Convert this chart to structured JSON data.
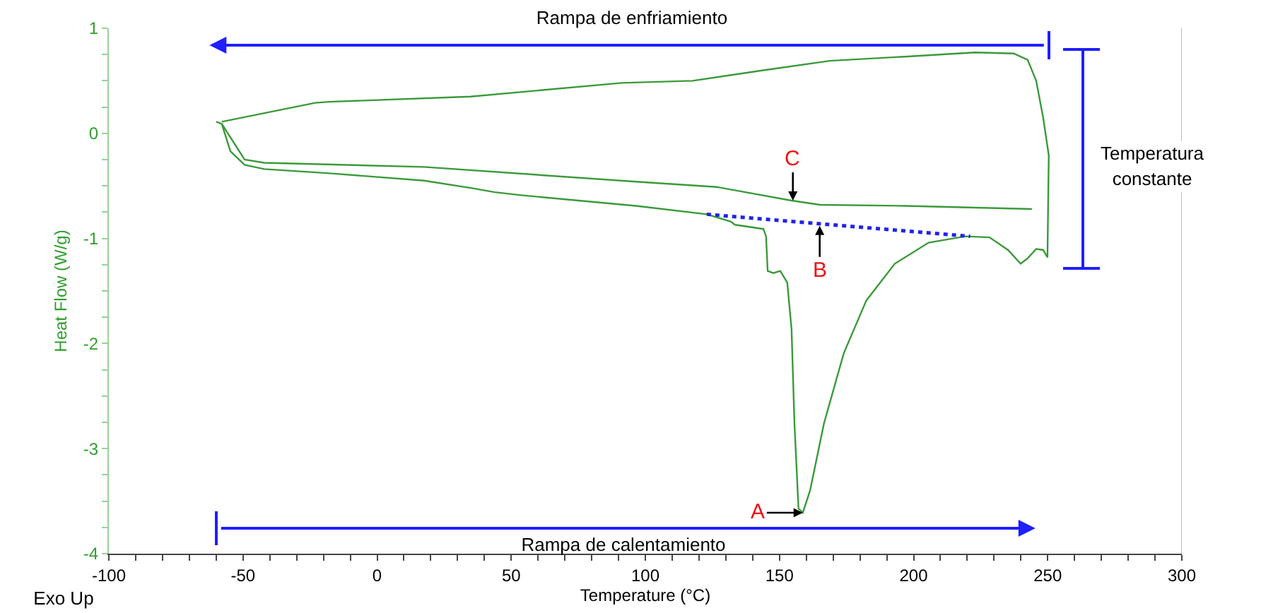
{
  "chart_data": {
    "type": "line",
    "xlabel": "Temperature (°C)",
    "ylabel": "Heat Flow (W/g)",
    "xlim": [
      -100,
      300
    ],
    "ylim": [
      -4,
      1
    ],
    "xticks": [
      -100,
      {
        "value": -90,
        "label": null
      },
      {
        "value": -80,
        "label": null
      },
      {
        "value": -70,
        "label": null
      },
      {
        "value": -60,
        "label": null
      },
      -50,
      {
        "value": -40,
        "label": null
      },
      {
        "value": -30,
        "label": null
      },
      {
        "value": -20,
        "label": null
      },
      {
        "value": -10,
        "label": null
      },
      0,
      {
        "value": 10,
        "label": null
      },
      {
        "value": 20,
        "label": null
      },
      {
        "value": 30,
        "label": null
      },
      {
        "value": 40,
        "label": null
      },
      50,
      {
        "value": 60,
        "label": null
      },
      {
        "value": 70,
        "label": null
      },
      {
        "value": 80,
        "label": null
      },
      {
        "value": 90,
        "label": null
      },
      100,
      {
        "value": 110,
        "label": null
      },
      {
        "value": 120,
        "label": null
      },
      {
        "value": 130,
        "label": null
      },
      {
        "value": 140,
        "label": null
      },
      150,
      {
        "value": 160,
        "label": null
      },
      {
        "value": 170,
        "label": null
      },
      {
        "value": 180,
        "label": null
      },
      {
        "value": 190,
        "label": null
      },
      200,
      {
        "value": 210,
        "label": null
      },
      {
        "value": 220,
        "label": null
      },
      {
        "value": 230,
        "label": null
      },
      {
        "value": 240,
        "label": null
      },
      250,
      {
        "value": 260,
        "label": null
      },
      {
        "value": 270,
        "label": null
      },
      {
        "value": 280,
        "label": null
      },
      {
        "value": 290,
        "label": null
      },
      300
    ],
    "yticks": [
      -4,
      {
        "value": -3.75,
        "label": null
      },
      {
        "value": -3.5,
        "label": null
      },
      {
        "value": -3.25,
        "label": null
      },
      -3,
      {
        "value": -2.75,
        "label": null
      },
      {
        "value": -2.5,
        "label": null
      },
      {
        "value": -2.25,
        "label": null
      },
      -2,
      {
        "value": -1.75,
        "label": null
      },
      {
        "value": -1.5,
        "label": null
      },
      {
        "value": -1.25,
        "label": null
      },
      -1,
      {
        "value": -0.75,
        "label": null
      },
      {
        "value": -0.5,
        "label": null
      },
      {
        "value": -0.25,
        "label": null
      },
      0,
      {
        "value": 0.25,
        "label": null
      },
      {
        "value": 0.5,
        "label": null
      },
      {
        "value": 0.75,
        "label": null
      },
      1
    ],
    "series": [
      {
        "color": "#3a9a3a",
        "x": [
          -60.0,
          -57.9,
          -54.7,
          -49.4,
          -42.1,
          -17.8,
          17.5,
          34.9,
          43.8,
          54.3,
          96.5,
          122.9,
          131.9,
          133.4,
          144.0,
          145.0,
          145.6,
          147.7,
          150.3,
          152.9,
          154.5,
          155.6,
          157.1,
          158.7,
          161.4,
          166.6,
          174.0,
          182.4,
          193.0,
          205.6,
          219.3,
          228.3,
          235.2,
          239.9,
          242.5,
          245.7,
          248.3,
          249.9,
          250.4,
          248.3,
          245.7,
          242.5,
          237.3,
          223.0,
          196.7,
          168.8,
          144.0,
          117.6,
          91.3,
          34.9,
          -17.8,
          -23.1,
          -57.9
        ],
        "values": [
          0.11,
          0.09,
          -0.17,
          -0.3,
          -0.34,
          -0.38,
          -0.45,
          -0.52,
          -0.56,
          -0.59,
          -0.69,
          -0.77,
          -0.84,
          -0.87,
          -0.91,
          -0.98,
          -1.31,
          -1.33,
          -1.31,
          -1.42,
          -1.86,
          -2.77,
          -3.57,
          -3.61,
          -3.4,
          -2.76,
          -2.09,
          -1.59,
          -1.24,
          -1.04,
          -0.98,
          -0.99,
          -1.11,
          -1.24,
          -1.19,
          -1.1,
          -1.11,
          -1.18,
          -0.21,
          0.15,
          0.5,
          0.7,
          0.76,
          0.77,
          0.73,
          0.69,
          0.6,
          0.5,
          0.48,
          0.35,
          0.3,
          0.29,
          0.11
        ]
      },
      {
        "color": "#3a9a3a",
        "x": [
          -57.9,
          -49.4,
          -42.1,
          17.5,
          96.5,
          126.5,
          154.5,
          165.1,
          196.7,
          244.1
        ],
        "values": [
          0.09,
          -0.25,
          -0.28,
          -0.32,
          -0.46,
          -0.51,
          -0.64,
          -0.68,
          -0.69,
          -0.72
        ]
      },
      {
        "color": "#2222ee",
        "line_style": "dotted",
        "x": [
          122.9,
          221.1
        ],
        "values": [
          -0.77,
          -0.98
        ]
      }
    ],
    "annotations": [
      "Rampa de enfriamiento",
      "Rampa de calentamiento",
      "Temperatura constante",
      "Exo Up",
      {
        "text": "A",
        "x": 158.7,
        "y": -3.61
      },
      {
        "text": "B",
        "x": 165,
        "y": -0.88
      },
      {
        "text": "C",
        "x": 155,
        "y": -0.64
      }
    ]
  }
}
